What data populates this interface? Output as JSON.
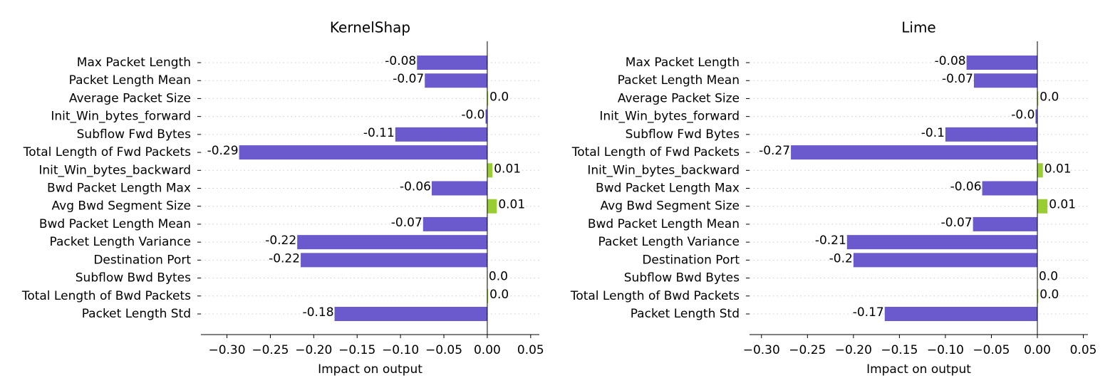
{
  "chart_data": [
    {
      "type": "bar",
      "orientation": "horizontal",
      "title": "KernelShap",
      "xlabel": "Impact on output",
      "categories": [
        "Max Packet Length",
        "Packet Length Mean",
        "Average Packet Size",
        "Init_Win_bytes_forward",
        "Subflow Fwd Bytes",
        "Total Length of Fwd Packets",
        "Init_Win_bytes_backward",
        "Bwd Packet Length Max",
        "Avg Bwd Segment Size",
        "Bwd Packet Length Mean",
        "Packet Length Variance",
        "Destination Port",
        "Subflow Bwd Bytes",
        "Total Length of Bwd Packets",
        "Packet Length Std"
      ],
      "values": [
        -0.081,
        -0.072,
        0.001,
        -0.002,
        -0.106,
        -0.286,
        0.006,
        -0.064,
        0.011,
        -0.074,
        -0.219,
        -0.215,
        0,
        0.001,
        -0.176
      ],
      "value_labels": [
        "-0.08",
        "-0.07",
        "0.0",
        "-0.0",
        "-0.11",
        "-0.29",
        "0.01",
        "-0.06",
        "0.01",
        "-0.07",
        "-0.22",
        "-0.22",
        "0.0",
        "0.0",
        "-0.18"
      ],
      "negative_color": "#6a5acd",
      "positive_color": "#9acd32",
      "xlim": [
        -0.33,
        0.06
      ],
      "xticks": [
        {
          "value": -0.3,
          "label": "−0.30"
        },
        {
          "value": -0.25,
          "label": "−0.25"
        },
        {
          "value": -0.2,
          "label": "−0.20"
        },
        {
          "value": -0.15,
          "label": "−0.15"
        },
        {
          "value": -0.1,
          "label": "−0.10"
        },
        {
          "value": -0.05,
          "label": "−0.05"
        },
        {
          "value": 0,
          "label": "0.00"
        },
        0.05
      ],
      "grid": true
    },
    {
      "type": "bar",
      "orientation": "horizontal",
      "title": "Lime",
      "xlabel": "Impact on output",
      "categories": [
        "Max Packet Length",
        "Packet Length Mean",
        "Average Packet Size",
        "Init_Win_bytes_forward",
        "Subflow Fwd Bytes",
        "Total Length of Fwd Packets",
        "Init_Win_bytes_backward",
        "Bwd Packet Length Max",
        "Avg Bwd Segment Size",
        "Bwd Packet Length Mean",
        "Packet Length Variance",
        "Destination Port",
        "Subflow Bwd Bytes",
        "Total Length of Bwd Packets",
        "Packet Length Std"
      ],
      "values": [
        -0.077,
        -0.069,
        0.001,
        -0.002,
        -0.1,
        -0.268,
        0.006,
        -0.06,
        0.011,
        -0.07,
        -0.207,
        -0.2,
        0,
        0.001,
        -0.166
      ],
      "value_labels": [
        "-0.08",
        "-0.07",
        "0.0",
        "-0.0",
        "-0.1",
        "-0.27",
        "0.01",
        "-0.06",
        "0.01",
        "-0.07",
        "-0.21",
        "-0.2",
        "0.0",
        "0.0",
        "-0.17"
      ],
      "negative_color": "#6a5acd",
      "positive_color": "#9acd32",
      "xlim": [
        -0.313,
        0.055
      ],
      "xticks": [
        {
          "value": -0.3,
          "label": "−0.30"
        },
        {
          "value": -0.25,
          "label": "−0.25"
        },
        {
          "value": -0.2,
          "label": "−0.20"
        },
        {
          "value": -0.15,
          "label": "−0.15"
        },
        {
          "value": -0.1,
          "label": "−0.10"
        },
        {
          "value": -0.05,
          "label": "−0.05"
        },
        {
          "value": 0,
          "label": "0.00"
        },
        0.05
      ],
      "grid": true
    }
  ]
}
